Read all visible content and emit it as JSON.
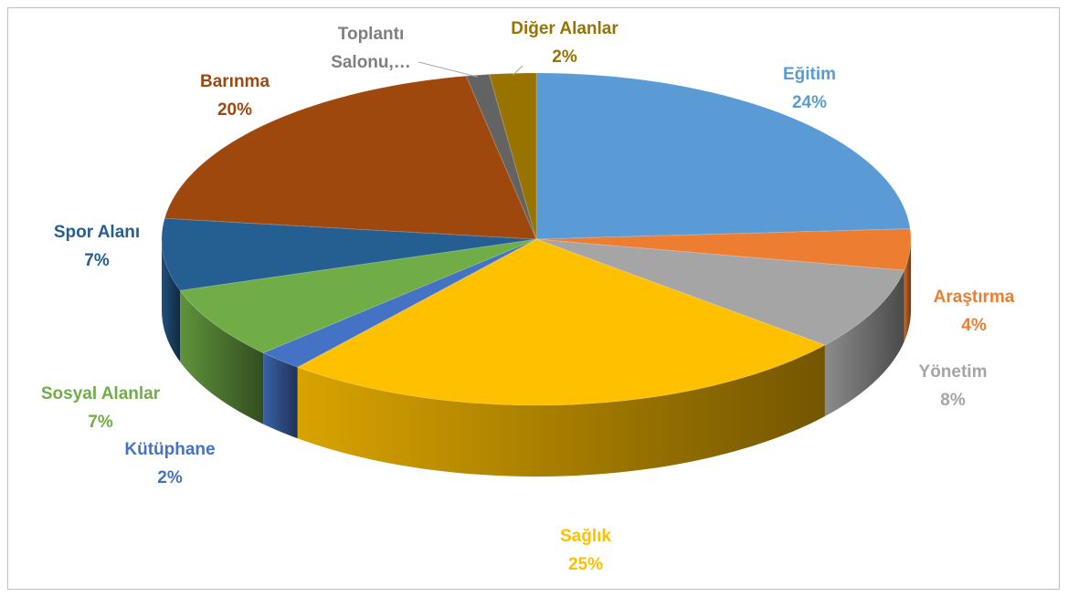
{
  "chart_data": {
    "type": "pie3d",
    "categories": [
      "Eğitim",
      "Araştırma",
      "Yönetim",
      "Sağlık",
      "Kütüphane",
      "Sosyal Alanlar",
      "Spor Alanı",
      "Barınma",
      "Toplantı Salonu,…",
      "Diğer Alanlar"
    ],
    "values": [
      24,
      4,
      8,
      25,
      2,
      7,
      7,
      20,
      1,
      2
    ],
    "value_labels": [
      "24%",
      "4%",
      "8%",
      "25%",
      "2%",
      "7%",
      "7%",
      "20%",
      null,
      "2%"
    ],
    "colors": [
      "#5b9bd5",
      "#ed7d31",
      "#a5a5a5",
      "#ffc000",
      "#4472c4",
      "#70ad47",
      "#255e91",
      "#9e480e",
      "#636363",
      "#997300"
    ]
  }
}
